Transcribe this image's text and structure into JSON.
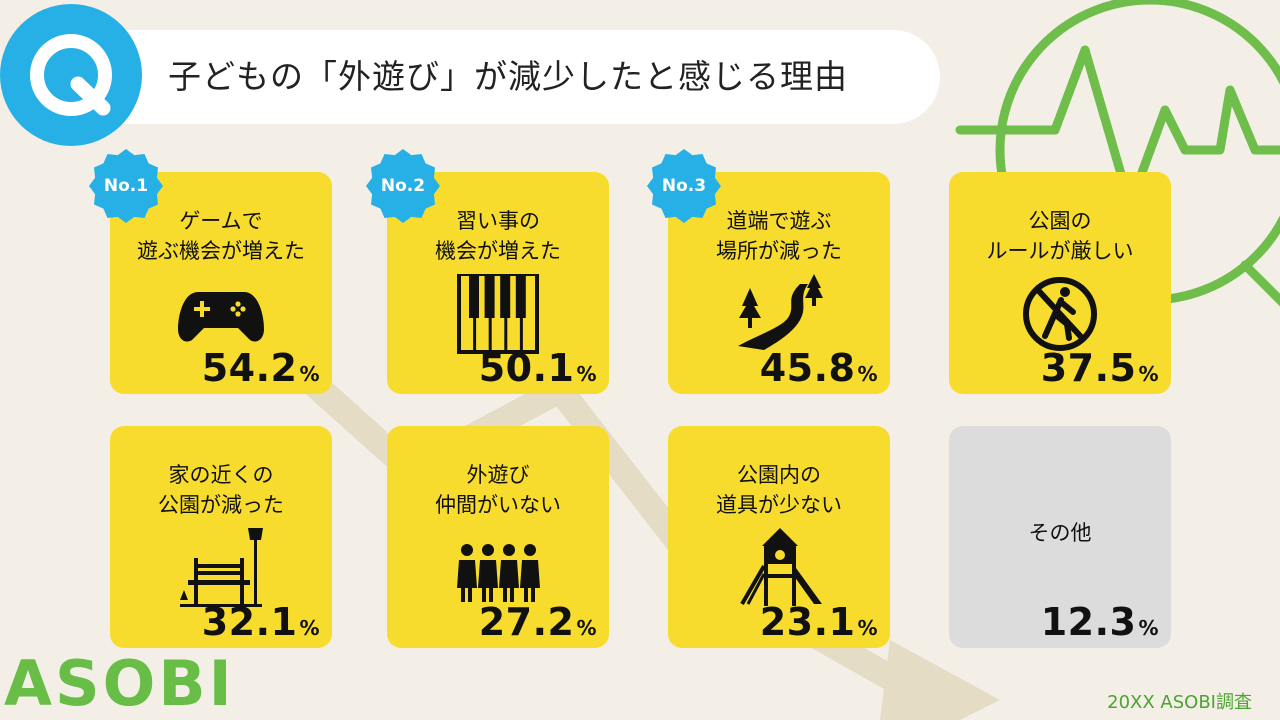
{
  "header": {
    "q_mark": "Q",
    "title": "子どもの「外遊び」が減少したと感じる理由"
  },
  "chart_data": {
    "type": "table",
    "title": "子どもの「外遊び」が減少したと感じる理由",
    "unit": "%",
    "items": [
      {
        "rank": "No.1",
        "label_lines": [
          "ゲームで",
          "遊ぶ機会が増えた"
        ],
        "value": 54.2,
        "value_text": "54.2",
        "icon": "game-controller-icon"
      },
      {
        "rank": "No.2",
        "label_lines": [
          "習い事の",
          "機会が増えた"
        ],
        "value": 50.1,
        "value_text": "50.1",
        "icon": "piano-keys-icon"
      },
      {
        "rank": "No.3",
        "label_lines": [
          "道端で遊ぶ",
          "場所が減った"
        ],
        "value": 45.8,
        "value_text": "45.8",
        "icon": "road-trees-icon"
      },
      {
        "rank": "",
        "label_lines": [
          "公園の",
          "ルールが厳しい"
        ],
        "value": 37.5,
        "value_text": "37.5",
        "icon": "no-walking-icon"
      },
      {
        "rank": "",
        "label_lines": [
          "家の近くの",
          "公園が減った"
        ],
        "value": 32.1,
        "value_text": "32.1",
        "icon": "park-bench-icon"
      },
      {
        "rank": "",
        "label_lines": [
          "外遊び",
          "仲間がいない"
        ],
        "value": 27.2,
        "value_text": "27.2",
        "icon": "group-children-icon"
      },
      {
        "rank": "",
        "label_lines": [
          "公園内の",
          "道具が少ない"
        ],
        "value": 23.1,
        "value_text": "23.1",
        "icon": "playground-slide-icon"
      },
      {
        "rank": "",
        "label_lines": [
          "その他"
        ],
        "value": 12.3,
        "value_text": "12.3",
        "icon": ""
      }
    ]
  },
  "colors": {
    "background": "#f3efe7",
    "card": "#f7dc2e",
    "card_other": "#dcdcdc",
    "badge": "#27b0e6",
    "brand_green": "#67bd45",
    "trend_arrow": "#e5dcc6"
  },
  "footer": {
    "logo": "ASOBI",
    "credit": "20XX ASOBI調査"
  }
}
